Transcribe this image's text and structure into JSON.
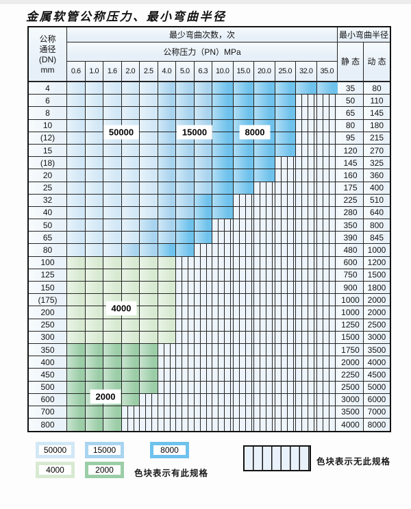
{
  "title": "金属软管公称压力、最小弯曲半径",
  "header": {
    "dn_lines": [
      "公称",
      "通径",
      "(DN)",
      "mm"
    ],
    "bend_cycles_label": "最少弯曲次数，次",
    "pressure_label": "公称压力（PN）MPa",
    "bend_radius_label": "最小弯曲半径",
    "static_label": "静 态",
    "dynamic_label": "动 态",
    "pressures": [
      "0.6",
      "1.0",
      "1.6",
      "2.0",
      "2.5",
      "4.0",
      "5.0",
      "6.3",
      "10.0",
      "15.0",
      "20.0",
      "25.0",
      "32.0",
      "35.0"
    ]
  },
  "colors": {
    "c50000": "#d3e8f6",
    "c15000": "#a9d4ef",
    "c8000": "#6fc2ec",
    "c4000": "#d8ead2",
    "c2000": "#9bcda7",
    "hatch_bg": "#edf4fb",
    "cell_bg": "#eaf2f9",
    "border": "#111111"
  },
  "zone_labels": [
    "50000",
    "15000",
    "8000",
    "4000",
    "2000"
  ],
  "rows": [
    {
      "dn": "4",
      "static": "35",
      "dynamic": "80",
      "zones": [
        [
          1,
          5,
          "c50000"
        ],
        [
          6,
          8,
          "c15000"
        ],
        [
          9,
          14,
          "c8000"
        ]
      ]
    },
    {
      "dn": "6",
      "static": "50",
      "dynamic": "110",
      "zones": [
        [
          1,
          5,
          "c50000"
        ],
        [
          6,
          8,
          "c15000"
        ],
        [
          9,
          12,
          "c8000"
        ]
      ]
    },
    {
      "dn": "8",
      "static": "65",
      "dynamic": "145",
      "zones": [
        [
          1,
          5,
          "c50000"
        ],
        [
          6,
          8,
          "c15000"
        ],
        [
          9,
          12,
          "c8000"
        ]
      ]
    },
    {
      "dn": "10",
      "static": "80",
      "dynamic": "180",
      "zones": [
        [
          1,
          5,
          "c50000"
        ],
        [
          6,
          8,
          "c15000"
        ],
        [
          9,
          12,
          "c8000"
        ]
      ]
    },
    {
      "dn": "(12)",
      "static": "95",
      "dynamic": "215",
      "zones": [
        [
          1,
          5,
          "c50000"
        ],
        [
          6,
          8,
          "c15000"
        ],
        [
          9,
          12,
          "c8000"
        ]
      ]
    },
    {
      "dn": "15",
      "static": "120",
      "dynamic": "270",
      "zones": [
        [
          1,
          5,
          "c50000"
        ],
        [
          6,
          8,
          "c15000"
        ],
        [
          9,
          12,
          "c8000"
        ]
      ]
    },
    {
      "dn": "(18)",
      "static": "145",
      "dynamic": "325",
      "zones": [
        [
          1,
          5,
          "c50000"
        ],
        [
          6,
          8,
          "c15000"
        ],
        [
          9,
          11,
          "c8000"
        ]
      ]
    },
    {
      "dn": "20",
      "static": "160",
      "dynamic": "360",
      "zones": [
        [
          1,
          5,
          "c50000"
        ],
        [
          6,
          8,
          "c15000"
        ],
        [
          9,
          11,
          "c8000"
        ]
      ]
    },
    {
      "dn": "25",
      "static": "175",
      "dynamic": "400",
      "zones": [
        [
          1,
          5,
          "c50000"
        ],
        [
          6,
          8,
          "c15000"
        ],
        [
          9,
          10,
          "c8000"
        ]
      ]
    },
    {
      "dn": "32",
      "static": "225",
      "dynamic": "510",
      "zones": [
        [
          1,
          5,
          "c50000"
        ],
        [
          6,
          7,
          "c15000"
        ],
        [
          8,
          9,
          "c8000"
        ]
      ]
    },
    {
      "dn": "40",
      "static": "280",
      "dynamic": "640",
      "zones": [
        [
          1,
          5,
          "c50000"
        ],
        [
          6,
          7,
          "c15000"
        ],
        [
          8,
          9,
          "c8000"
        ]
      ]
    },
    {
      "dn": "50",
      "static": "350",
      "dynamic": "800",
      "zones": [
        [
          1,
          4,
          "c50000"
        ],
        [
          5,
          6,
          "c15000"
        ],
        [
          7,
          8,
          "c8000"
        ]
      ]
    },
    {
      "dn": "65",
      "static": "390",
      "dynamic": "845",
      "zones": [
        [
          1,
          4,
          "c50000"
        ],
        [
          5,
          6,
          "c15000"
        ],
        [
          7,
          8,
          "c8000"
        ]
      ]
    },
    {
      "dn": "80",
      "static": "480",
      "dynamic": "1000",
      "zones": [
        [
          1,
          3,
          "c50000"
        ],
        [
          4,
          5,
          "c15000"
        ],
        [
          6,
          7,
          "c8000"
        ]
      ]
    },
    {
      "dn": "100",
      "static": "600",
      "dynamic": "1200",
      "zones": [
        [
          1,
          6,
          "c4000"
        ]
      ]
    },
    {
      "dn": "125",
      "static": "750",
      "dynamic": "1500",
      "zones": [
        [
          1,
          6,
          "c4000"
        ]
      ]
    },
    {
      "dn": "150",
      "static": "900",
      "dynamic": "1800",
      "zones": [
        [
          1,
          6,
          "c4000"
        ]
      ]
    },
    {
      "dn": "(175)",
      "static": "1000",
      "dynamic": "2000",
      "zones": [
        [
          1,
          6,
          "c4000"
        ]
      ]
    },
    {
      "dn": "200",
      "static": "1000",
      "dynamic": "2000",
      "zones": [
        [
          1,
          6,
          "c4000"
        ]
      ]
    },
    {
      "dn": "250",
      "static": "1250",
      "dynamic": "2500",
      "zones": [
        [
          1,
          6,
          "c4000"
        ]
      ]
    },
    {
      "dn": "300",
      "static": "1500",
      "dynamic": "3000",
      "zones": [
        [
          1,
          6,
          "c4000"
        ]
      ]
    },
    {
      "dn": "350",
      "static": "1750",
      "dynamic": "3500",
      "zones": [
        [
          1,
          5,
          "c2000"
        ]
      ]
    },
    {
      "dn": "400",
      "static": "2000",
      "dynamic": "4000",
      "zones": [
        [
          1,
          5,
          "c2000"
        ]
      ]
    },
    {
      "dn": "450",
      "static": "2250",
      "dynamic": "4500",
      "zones": [
        [
          1,
          5,
          "c2000"
        ]
      ]
    },
    {
      "dn": "500",
      "static": "2500",
      "dynamic": "5000",
      "zones": [
        [
          1,
          5,
          "c2000"
        ]
      ]
    },
    {
      "dn": "600",
      "static": "3000",
      "dynamic": "6000",
      "zones": [
        [
          1,
          4,
          "c2000"
        ]
      ]
    },
    {
      "dn": "700",
      "static": "3500",
      "dynamic": "7000",
      "zones": [
        [
          1,
          3,
          "c2000"
        ]
      ]
    },
    {
      "dn": "800",
      "static": "4000",
      "dynamic": "8000",
      "zones": [
        [
          1,
          3,
          "c2000"
        ]
      ]
    }
  ],
  "legend": {
    "swatches": [
      {
        "label": "50000",
        "color": "c50000"
      },
      {
        "label": "15000",
        "color": "c15000"
      },
      {
        "label": "8000",
        "color": "c8000"
      },
      {
        "label": "4000",
        "color": "c4000"
      },
      {
        "label": "2000",
        "color": "c2000"
      }
    ],
    "available_note": "色块表示有此规格",
    "unavailable_note": "色块表示无此规格"
  }
}
